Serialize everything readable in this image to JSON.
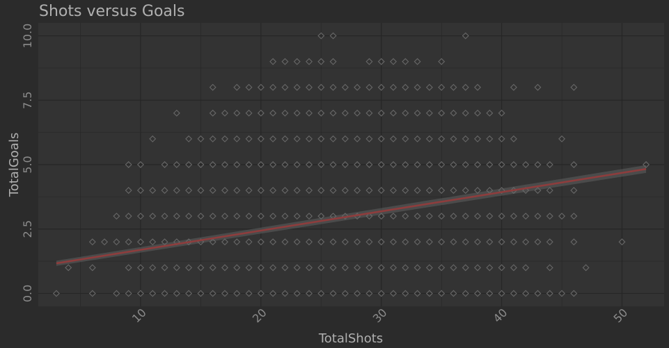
{
  "colors": {
    "background": "#2b2b2b",
    "panel": "#333333",
    "grid": "#262626",
    "text": "#b0b0b0",
    "tick_text": "#8c8c8c",
    "point": "#686868",
    "fit_line": "#8e3d3d",
    "ribbon": "#555555"
  },
  "chart_data": {
    "type": "scatter",
    "title": "Shots versus Goals",
    "xlabel": "TotalShots",
    "ylabel": "TotalGoals",
    "xlim": [
      1.5,
      53.5
    ],
    "ylim": [
      -0.5,
      10.5
    ],
    "x_ticks": [
      10,
      20,
      30,
      40,
      50
    ],
    "x_tick_labels": [
      "10",
      "20",
      "30",
      "40",
      "50"
    ],
    "y_ticks": [
      0,
      2.5,
      5,
      7.5,
      10
    ],
    "y_tick_labels": [
      "0.0",
      "2.5",
      "5.0",
      "7.5",
      "10.0"
    ],
    "grid": true,
    "point_shape": "hollow-diamond",
    "points": [
      [
        3,
        0
      ],
      [
        4,
        1
      ],
      [
        6,
        2
      ],
      [
        6,
        1
      ],
      [
        6,
        0
      ],
      [
        7,
        2
      ],
      [
        8,
        2
      ],
      [
        8,
        3
      ],
      [
        8,
        0
      ],
      [
        9,
        5
      ],
      [
        9,
        4
      ],
      [
        9,
        3
      ],
      [
        9,
        2
      ],
      [
        9,
        1
      ],
      [
        9,
        0
      ],
      [
        10,
        5
      ],
      [
        10,
        4
      ],
      [
        10,
        3
      ],
      [
        10,
        2
      ],
      [
        10,
        1
      ],
      [
        10,
        0
      ],
      [
        11,
        6
      ],
      [
        11,
        4
      ],
      [
        11,
        3
      ],
      [
        11,
        2
      ],
      [
        11,
        1
      ],
      [
        11,
        0
      ],
      [
        12,
        5
      ],
      [
        12,
        4
      ],
      [
        12,
        3
      ],
      [
        12,
        2
      ],
      [
        12,
        1
      ],
      [
        12,
        0
      ],
      [
        13,
        7
      ],
      [
        13,
        5
      ],
      [
        13,
        4
      ],
      [
        13,
        3
      ],
      [
        13,
        2
      ],
      [
        13,
        1
      ],
      [
        13,
        0
      ],
      [
        14,
        6
      ],
      [
        14,
        5
      ],
      [
        14,
        4
      ],
      [
        14,
        3
      ],
      [
        14,
        2
      ],
      [
        14,
        1
      ],
      [
        14,
        0
      ],
      [
        15,
        6
      ],
      [
        15,
        5
      ],
      [
        15,
        4
      ],
      [
        15,
        3
      ],
      [
        15,
        2
      ],
      [
        15,
        1
      ],
      [
        15,
        0
      ],
      [
        16,
        8
      ],
      [
        16,
        7
      ],
      [
        16,
        6
      ],
      [
        16,
        5
      ],
      [
        16,
        4
      ],
      [
        16,
        3
      ],
      [
        16,
        2
      ],
      [
        16,
        1
      ],
      [
        16,
        0
      ],
      [
        17,
        7
      ],
      [
        17,
        6
      ],
      [
        17,
        5
      ],
      [
        17,
        4
      ],
      [
        17,
        3
      ],
      [
        17,
        2
      ],
      [
        17,
        1
      ],
      [
        17,
        0
      ],
      [
        18,
        8
      ],
      [
        18,
        7
      ],
      [
        18,
        6
      ],
      [
        18,
        5
      ],
      [
        18,
        4
      ],
      [
        18,
        3
      ],
      [
        18,
        2
      ],
      [
        18,
        1
      ],
      [
        18,
        0
      ],
      [
        19,
        8
      ],
      [
        19,
        7
      ],
      [
        19,
        6
      ],
      [
        19,
        5
      ],
      [
        19,
        4
      ],
      [
        19,
        3
      ],
      [
        19,
        2
      ],
      [
        19,
        1
      ],
      [
        19,
        0
      ],
      [
        20,
        8
      ],
      [
        20,
        7
      ],
      [
        20,
        6
      ],
      [
        20,
        5
      ],
      [
        20,
        4
      ],
      [
        20,
        3
      ],
      [
        20,
        2
      ],
      [
        20,
        1
      ],
      [
        20,
        0
      ],
      [
        21,
        9
      ],
      [
        21,
        8
      ],
      [
        21,
        7
      ],
      [
        21,
        6
      ],
      [
        21,
        5
      ],
      [
        21,
        4
      ],
      [
        21,
        3
      ],
      [
        21,
        2
      ],
      [
        21,
        1
      ],
      [
        21,
        0
      ],
      [
        22,
        9
      ],
      [
        22,
        8
      ],
      [
        22,
        7
      ],
      [
        22,
        6
      ],
      [
        22,
        5
      ],
      [
        22,
        4
      ],
      [
        22,
        3
      ],
      [
        22,
        2
      ],
      [
        22,
        1
      ],
      [
        22,
        0
      ],
      [
        23,
        9
      ],
      [
        23,
        8
      ],
      [
        23,
        7
      ],
      [
        23,
        6
      ],
      [
        23,
        5
      ],
      [
        23,
        4
      ],
      [
        23,
        3
      ],
      [
        23,
        2
      ],
      [
        23,
        1
      ],
      [
        23,
        0
      ],
      [
        24,
        9
      ],
      [
        24,
        8
      ],
      [
        24,
        7
      ],
      [
        24,
        6
      ],
      [
        24,
        5
      ],
      [
        24,
        4
      ],
      [
        24,
        3
      ],
      [
        24,
        2
      ],
      [
        24,
        1
      ],
      [
        24,
        0
      ],
      [
        25,
        10
      ],
      [
        25,
        9
      ],
      [
        25,
        8
      ],
      [
        25,
        7
      ],
      [
        25,
        6
      ],
      [
        25,
        5
      ],
      [
        25,
        4
      ],
      [
        25,
        3
      ],
      [
        25,
        2
      ],
      [
        25,
        1
      ],
      [
        25,
        0
      ],
      [
        26,
        10
      ],
      [
        26,
        9
      ],
      [
        26,
        8
      ],
      [
        26,
        7
      ],
      [
        26,
        6
      ],
      [
        26,
        5
      ],
      [
        26,
        4
      ],
      [
        26,
        3
      ],
      [
        26,
        2
      ],
      [
        26,
        1
      ],
      [
        26,
        0
      ],
      [
        27,
        8
      ],
      [
        27,
        7
      ],
      [
        27,
        6
      ],
      [
        27,
        5
      ],
      [
        27,
        4
      ],
      [
        27,
        3
      ],
      [
        27,
        2
      ],
      [
        27,
        1
      ],
      [
        27,
        0
      ],
      [
        28,
        8
      ],
      [
        28,
        7
      ],
      [
        28,
        6
      ],
      [
        28,
        5
      ],
      [
        28,
        4
      ],
      [
        28,
        3
      ],
      [
        28,
        2
      ],
      [
        28,
        1
      ],
      [
        28,
        0
      ],
      [
        29,
        9
      ],
      [
        29,
        8
      ],
      [
        29,
        7
      ],
      [
        29,
        6
      ],
      [
        29,
        5
      ],
      [
        29,
        4
      ],
      [
        29,
        3
      ],
      [
        29,
        2
      ],
      [
        29,
        1
      ],
      [
        29,
        0
      ],
      [
        30,
        9
      ],
      [
        30,
        8
      ],
      [
        30,
        7
      ],
      [
        30,
        6
      ],
      [
        30,
        5
      ],
      [
        30,
        4
      ],
      [
        30,
        3
      ],
      [
        30,
        2
      ],
      [
        30,
        1
      ],
      [
        30,
        0
      ],
      [
        31,
        9
      ],
      [
        31,
        8
      ],
      [
        31,
        7
      ],
      [
        31,
        6
      ],
      [
        31,
        5
      ],
      [
        31,
        4
      ],
      [
        31,
        3
      ],
      [
        31,
        2
      ],
      [
        31,
        1
      ],
      [
        31,
        0
      ],
      [
        32,
        9
      ],
      [
        32,
        8
      ],
      [
        32,
        7
      ],
      [
        32,
        6
      ],
      [
        32,
        5
      ],
      [
        32,
        4
      ],
      [
        32,
        3
      ],
      [
        32,
        2
      ],
      [
        32,
        1
      ],
      [
        32,
        0
      ],
      [
        33,
        9
      ],
      [
        33,
        8
      ],
      [
        33,
        7
      ],
      [
        33,
        6
      ],
      [
        33,
        5
      ],
      [
        33,
        4
      ],
      [
        33,
        3
      ],
      [
        33,
        2
      ],
      [
        33,
        1
      ],
      [
        33,
        0
      ],
      [
        34,
        8
      ],
      [
        34,
        7
      ],
      [
        34,
        6
      ],
      [
        34,
        5
      ],
      [
        34,
        4
      ],
      [
        34,
        3
      ],
      [
        34,
        2
      ],
      [
        34,
        1
      ],
      [
        34,
        0
      ],
      [
        35,
        9
      ],
      [
        35,
        8
      ],
      [
        35,
        7
      ],
      [
        35,
        6
      ],
      [
        35,
        5
      ],
      [
        35,
        4
      ],
      [
        35,
        3
      ],
      [
        35,
        2
      ],
      [
        35,
        1
      ],
      [
        35,
        0
      ],
      [
        36,
        8
      ],
      [
        36,
        7
      ],
      [
        36,
        6
      ],
      [
        36,
        5
      ],
      [
        36,
        4
      ],
      [
        36,
        3
      ],
      [
        36,
        2
      ],
      [
        36,
        1
      ],
      [
        36,
        0
      ],
      [
        37,
        10
      ],
      [
        37,
        8
      ],
      [
        37,
        7
      ],
      [
        37,
        6
      ],
      [
        37,
        5
      ],
      [
        37,
        4
      ],
      [
        37,
        3
      ],
      [
        37,
        2
      ],
      [
        37,
        1
      ],
      [
        37,
        0
      ],
      [
        38,
        8
      ],
      [
        38,
        7
      ],
      [
        38,
        6
      ],
      [
        38,
        5
      ],
      [
        38,
        4
      ],
      [
        38,
        3
      ],
      [
        38,
        2
      ],
      [
        38,
        1
      ],
      [
        38,
        0
      ],
      [
        39,
        7
      ],
      [
        39,
        6
      ],
      [
        39,
        5
      ],
      [
        39,
        4
      ],
      [
        39,
        3
      ],
      [
        39,
        2
      ],
      [
        39,
        1
      ],
      [
        39,
        0
      ],
      [
        40,
        7
      ],
      [
        40,
        6
      ],
      [
        40,
        5
      ],
      [
        40,
        4
      ],
      [
        40,
        3
      ],
      [
        40,
        2
      ],
      [
        40,
        1
      ],
      [
        40,
        0
      ],
      [
        41,
        8
      ],
      [
        41,
        6
      ],
      [
        41,
        5
      ],
      [
        41,
        4
      ],
      [
        41,
        3
      ],
      [
        41,
        2
      ],
      [
        41,
        1
      ],
      [
        41,
        0
      ],
      [
        42,
        5
      ],
      [
        42,
        4
      ],
      [
        42,
        3
      ],
      [
        42,
        2
      ],
      [
        42,
        1
      ],
      [
        42,
        0
      ],
      [
        43,
        8
      ],
      [
        43,
        5
      ],
      [
        43,
        4
      ],
      [
        43,
        3
      ],
      [
        43,
        2
      ],
      [
        43,
        0
      ],
      [
        44,
        5
      ],
      [
        44,
        4
      ],
      [
        44,
        3
      ],
      [
        44,
        2
      ],
      [
        44,
        1
      ],
      [
        44,
        0
      ],
      [
        45,
        6
      ],
      [
        45,
        3
      ],
      [
        45,
        0
      ],
      [
        46,
        8
      ],
      [
        46,
        5
      ],
      [
        46,
        4
      ],
      [
        46,
        3
      ],
      [
        46,
        2
      ],
      [
        46,
        0
      ],
      [
        47,
        1
      ],
      [
        50,
        2
      ],
      [
        52,
        5
      ]
    ],
    "fit_line": {
      "x": [
        3,
        52
      ],
      "y": [
        1.17,
        4.83
      ],
      "ribbon_lower": [
        1.07,
        4.68
      ],
      "ribbon_upper": [
        1.27,
        4.98
      ]
    }
  }
}
